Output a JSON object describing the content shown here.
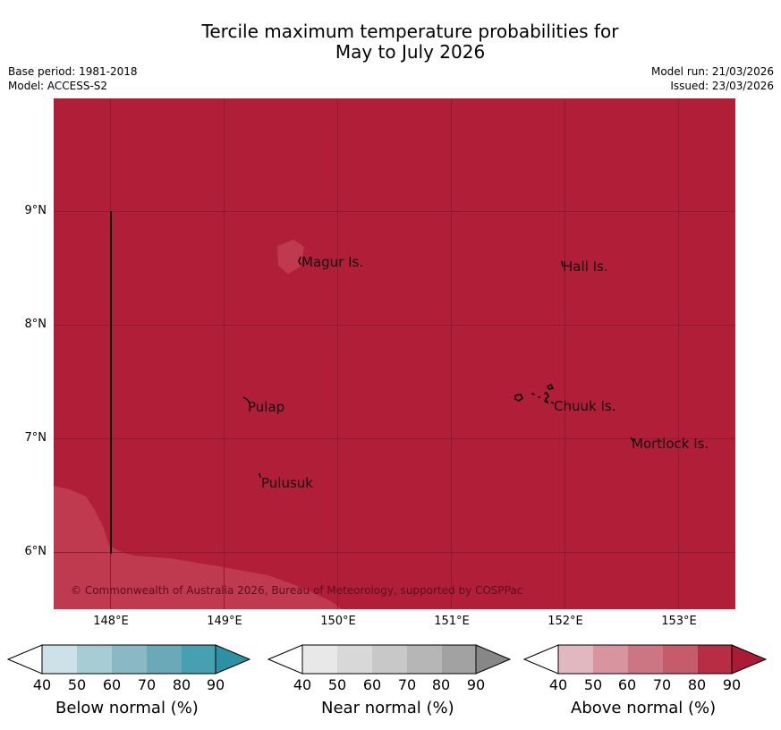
{
  "title": {
    "line1": "Tercile maximum temperature probabilities for",
    "line2": "May to July 2026"
  },
  "meta": {
    "base_period": "Base period: 1981-2018",
    "model": "Model: ACCESS-S2",
    "model_run": "Model run: 21/03/2026",
    "issued": "Issued: 23/03/2026"
  },
  "map": {
    "background_color": "#b11e37",
    "light_shade_color": "#bf3a4e",
    "places": [
      {
        "name": "Magur Is."
      },
      {
        "name": "Hall Is."
      },
      {
        "name": "Pulap"
      },
      {
        "name": "Chuuk Is."
      },
      {
        "name": "Mortlock Is."
      },
      {
        "name": "Pulusuk"
      }
    ],
    "copyright": "© Commonwealth of Australia 2026, Bureau of Meteorology, supported by COSPPac"
  },
  "axes": {
    "y_ticks": [
      "9°N",
      "8°N",
      "7°N",
      "6°N"
    ],
    "x_ticks": [
      "148°E",
      "149°E",
      "150°E",
      "151°E",
      "152°E",
      "153°E"
    ]
  },
  "legends": [
    {
      "label": "Below normal (%)",
      "ticks": [
        "40",
        "50",
        "60",
        "70",
        "80",
        "90"
      ],
      "colors": [
        "#cce2e8",
        "#a8ccd3",
        "#8ab9c4",
        "#6aaab8",
        "#47a0b0",
        "#2e91a3"
      ]
    },
    {
      "label": "Near normal (%)",
      "ticks": [
        "40",
        "50",
        "60",
        "70",
        "80",
        "90"
      ],
      "colors": [
        "#e8e8e8",
        "#d8d8d8",
        "#c8c8c8",
        "#b6b6b6",
        "#a2a2a2",
        "#878787"
      ]
    },
    {
      "label": "Above normal (%)",
      "ticks": [
        "40",
        "50",
        "60",
        "70",
        "80",
        "90"
      ],
      "colors": [
        "#e2b8c0",
        "#d8959f",
        "#cd7683",
        "#c65b69",
        "#b92d44",
        "#ad1a35"
      ]
    }
  ]
}
